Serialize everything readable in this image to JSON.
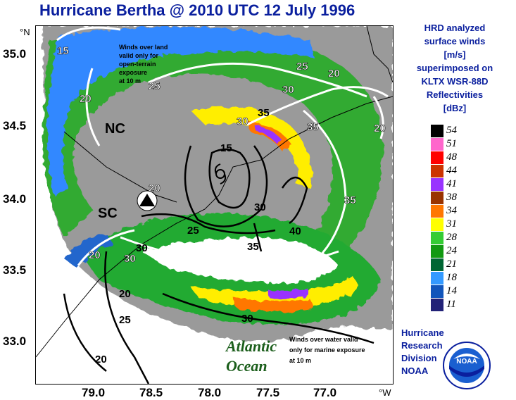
{
  "title": "Hurricane Bertha @ 2010 UTC 12 July 1996",
  "map": {
    "lat_labels": [
      "35.0",
      "34.5",
      "34.0",
      "33.5",
      "33.0"
    ],
    "lon_labels": [
      "79.0",
      "78.5",
      "78.0",
      "77.5",
      "77.0"
    ],
    "lat_unit": "°N",
    "lon_unit": "°W",
    "state_labels": [
      "NC",
      "SC"
    ],
    "ocean_line1": "Atlantic",
    "ocean_line2": "Ocean",
    "land_note": [
      "Winds over land",
      "valid only for",
      "open-terrain",
      "exposure",
      "at 10 m"
    ],
    "water_note": [
      "Winds over water valid",
      "only for marine exposure",
      "at 10 m"
    ],
    "white_contours": [
      "15",
      "20",
      "25",
      "20",
      "25",
      "30",
      "20",
      "35",
      "30",
      "35",
      "20",
      "30",
      "20"
    ],
    "black_contours": [
      "15",
      "30",
      "35",
      "40",
      "35",
      "25",
      "30",
      "20",
      "25",
      "30",
      "20"
    ]
  },
  "right_title": [
    "HRD analyzed",
    "surface winds",
    "[m/s]",
    "superimposed on",
    "KLTX WSR-88D",
    "Reflectivities",
    "[dBz]"
  ],
  "legend": [
    {
      "value": "54",
      "color": "#000000"
    },
    {
      "value": "51",
      "color": "#ff66cc"
    },
    {
      "value": "48",
      "color": "#ff0000"
    },
    {
      "value": "44",
      "color": "#cc3300"
    },
    {
      "value": "41",
      "color": "#9933ff"
    },
    {
      "value": "38",
      "color": "#993300"
    },
    {
      "value": "34",
      "color": "#ff7700"
    },
    {
      "value": "31",
      "color": "#ffff00"
    },
    {
      "value": "28",
      "color": "#33cc33"
    },
    {
      "value": "24",
      "color": "#119911"
    },
    {
      "value": "21",
      "color": "#006633"
    },
    {
      "value": "18",
      "color": "#3399ff"
    },
    {
      "value": "14",
      "color": "#1155bb"
    },
    {
      "value": "11",
      "color": "#222277"
    }
  ],
  "credit": [
    "Hurricane",
    "Research",
    "Division",
    "NOAA"
  ],
  "logo_text": "NOAA"
}
